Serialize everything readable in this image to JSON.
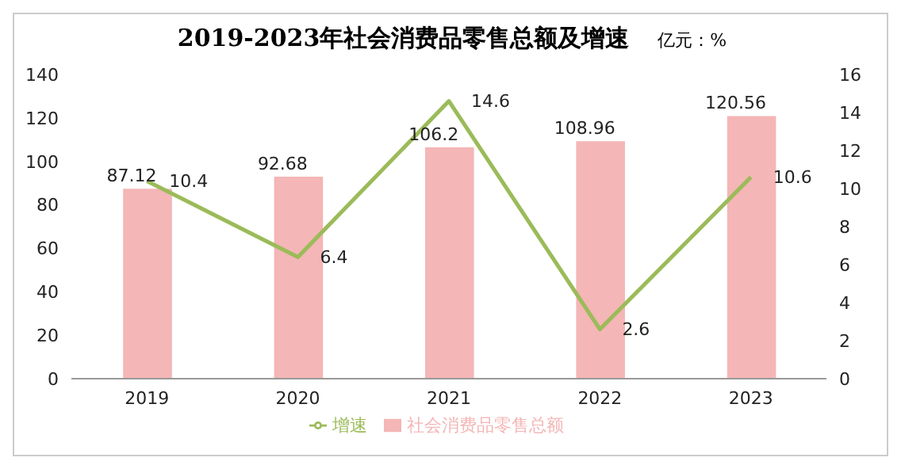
{
  "chart_data": {
    "type": "bar",
    "title": "2019-2023年社会消费品零售总额及增速",
    "annotations": [
      "亿元：%"
    ],
    "categories": [
      "2019",
      "2020",
      "2021",
      "2022",
      "2023"
    ],
    "series": [
      {
        "name": "社会消费品零售总额",
        "color": "#f4b6b6",
        "values": [
          87.12,
          92.68,
          106.2,
          108.96,
          120.56
        ]
      },
      {
        "name": "增速",
        "type": "line",
        "axis": "y2",
        "color": "#9bbb59",
        "values": [
          10.4,
          6.4,
          14.6,
          2.6,
          10.6
        ]
      }
    ],
    "ylim": [
      0,
      140
    ],
    "yticks": [
      0,
      20,
      40,
      60,
      80,
      100,
      120,
      140
    ],
    "y2lim": [
      0,
      16
    ],
    "y2ticks": [
      0,
      2,
      4,
      6,
      8,
      10,
      12,
      14,
      16
    ],
    "data_labels": true,
    "legend": "bottom",
    "grid": false,
    "marker": "none"
  }
}
